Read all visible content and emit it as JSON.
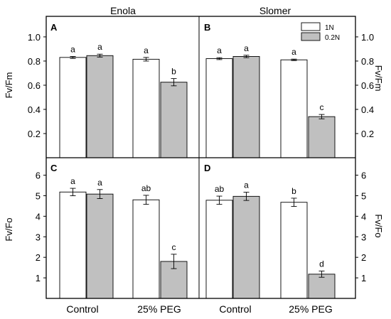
{
  "column_titles": [
    "Enola",
    "Slomer"
  ],
  "legend": [
    {
      "name": "1N",
      "color": "#ffffff"
    },
    {
      "name": "0.2N",
      "color": "#c0c0c0"
    }
  ],
  "x_categories": [
    "Control",
    "25% PEG"
  ],
  "row_axis_labels": {
    "top_left": "Fv/Fm",
    "top_right": "Fv/Fm",
    "bottom_left": "Fv/Fo",
    "bottom_right": "Fv/Fo"
  },
  "chart_data": [
    {
      "type": "bar",
      "panel": "A",
      "cultivar": "Enola",
      "categories": [
        "Control",
        "25% PEG"
      ],
      "ylabel": "Fv/Fm",
      "ylim": [
        0,
        1.17
      ],
      "yticks": [
        "0.2",
        "0.4",
        "0.6",
        "0.8",
        "1.0"
      ],
      "ytick_values": [
        0.2,
        0.4,
        0.6,
        0.8,
        1.0
      ],
      "series": [
        {
          "name": "1N",
          "values": [
            0.83,
            0.815
          ],
          "errors": [
            0.008,
            0.015
          ],
          "letters": [
            "a",
            "a"
          ]
        },
        {
          "name": "0.2N",
          "values": [
            0.845,
            0.625
          ],
          "errors": [
            0.012,
            0.03
          ],
          "letters": [
            "a",
            "b"
          ]
        }
      ]
    },
    {
      "type": "bar",
      "panel": "B",
      "cultivar": "Slomer",
      "categories": [
        "Control",
        "25% PEG"
      ],
      "ylabel": "Fv/Fm",
      "ylim": [
        0,
        1.17
      ],
      "yticks": [
        "0.2",
        "0.4",
        "0.6",
        "0.8",
        "1.0"
      ],
      "ytick_values": [
        0.2,
        0.4,
        0.6,
        0.8,
        1.0
      ],
      "series": [
        {
          "name": "1N",
          "values": [
            0.82,
            0.81
          ],
          "errors": [
            0.008,
            0.006
          ],
          "letters": [
            "a",
            "a"
          ]
        },
        {
          "name": "0.2N",
          "values": [
            0.838,
            0.34
          ],
          "errors": [
            0.01,
            0.018
          ],
          "letters": [
            "a",
            "c"
          ]
        }
      ]
    },
    {
      "type": "bar",
      "panel": "C",
      "cultivar": "Enola",
      "categories": [
        "Control",
        "25% PEG"
      ],
      "ylabel": "Fv/Fo",
      "ylim": [
        0,
        6.85
      ],
      "yticks": [
        "1",
        "2",
        "3",
        "4",
        "5",
        "6"
      ],
      "ytick_values": [
        1,
        2,
        3,
        4,
        5,
        6
      ],
      "series": [
        {
          "name": "1N",
          "values": [
            5.18,
            4.8
          ],
          "errors": [
            0.18,
            0.22
          ],
          "letters": [
            "a",
            "ab"
          ]
        },
        {
          "name": "0.2N",
          "values": [
            5.08,
            1.8
          ],
          "errors": [
            0.22,
            0.35
          ],
          "letters": [
            "a",
            "c"
          ]
        }
      ]
    },
    {
      "type": "bar",
      "panel": "D",
      "cultivar": "Slomer",
      "categories": [
        "Control",
        "25% PEG"
      ],
      "ylabel": "Fv/Fo",
      "ylim": [
        0,
        6.85
      ],
      "yticks": [
        "1",
        "2",
        "3",
        "4",
        "5",
        "6"
      ],
      "ytick_values": [
        1,
        2,
        3,
        4,
        5,
        6
      ],
      "series": [
        {
          "name": "1N",
          "values": [
            4.78,
            4.68
          ],
          "errors": [
            0.2,
            0.2
          ],
          "letters": [
            "ab",
            "b"
          ]
        },
        {
          "name": "0.2N",
          "values": [
            4.97,
            1.18
          ],
          "errors": [
            0.2,
            0.15
          ],
          "letters": [
            "a",
            "d"
          ]
        }
      ]
    }
  ]
}
